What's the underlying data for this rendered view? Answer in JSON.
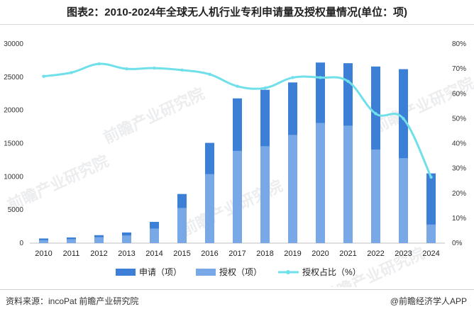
{
  "title": "图表2：2010-2024年全球无人机行业专利申请量及授权量情况(单位：项)",
  "watermark": "前瞻产业研究院",
  "footer": {
    "source": "资料来源：incoPat 前瞻产业研究院",
    "brand": "@前瞻经济学人APP"
  },
  "colors": {
    "apply": "#3b7fd6",
    "grant": "#78a9e6",
    "ratio": "#6fe0ea"
  },
  "chart_data": {
    "type": "bar",
    "categories": [
      "2010",
      "2011",
      "2012",
      "2013",
      "2014",
      "2015",
      "2016",
      "2017",
      "2018",
      "2019",
      "2020",
      "2021",
      "2022",
      "2023",
      "2024"
    ],
    "series": [
      {
        "name": "申请（项）",
        "type": "bar",
        "axis": "left",
        "values": [
          700,
          850,
          1200,
          1600,
          3200,
          7400,
          15100,
          21800,
          23100,
          24200,
          27200,
          27100,
          26600,
          26200,
          10500
        ]
      },
      {
        "name": "授权（项）",
        "type": "bar",
        "axis": "left",
        "values": [
          450,
          600,
          900,
          1150,
          2200,
          5300,
          10400,
          13900,
          14600,
          16300,
          18100,
          17700,
          14100,
          12800,
          2800
        ]
      },
      {
        "name": "授权占比（%）",
        "type": "line",
        "axis": "right",
        "values": [
          67,
          68.5,
          72,
          70,
          70.3,
          69.5,
          67.8,
          63,
          62.3,
          66.5,
          66.5,
          65,
          52,
          50,
          26.5
        ]
      }
    ],
    "y_left": {
      "min": 0,
      "max": 30000,
      "ticks": [
        0,
        5000,
        10000,
        15000,
        20000,
        25000,
        30000
      ]
    },
    "y_right": {
      "min": 0,
      "max": 80,
      "ticks": [
        "0%",
        "10%",
        "20%",
        "30%",
        "40%",
        "50%",
        "60%",
        "70%",
        "80%"
      ]
    },
    "grid": false,
    "legend_position": "bottom"
  }
}
